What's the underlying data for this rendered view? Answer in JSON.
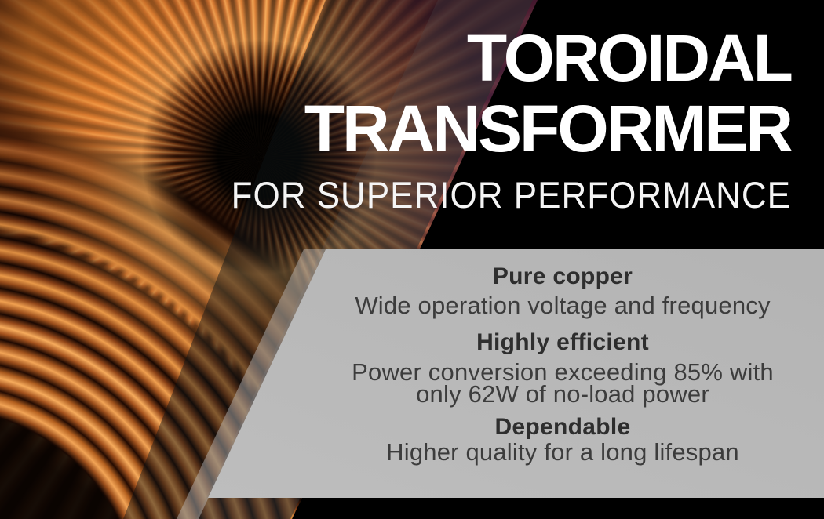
{
  "title": {
    "line1": "TOROIDAL",
    "line2": "TRANSFORMER",
    "subtitle": "FOR SUPERIOR PERFORMANCE"
  },
  "features": [
    {
      "heading": "Pure copper",
      "lines": [
        "Wide operation voltage and frequency"
      ]
    },
    {
      "heading": "Highly efficient",
      "lines": [
        "Power conversion exceeding 85% with",
        "only 62W of no-load power"
      ]
    },
    {
      "heading": "Dependable",
      "lines": [
        "Higher quality for a long lifespan"
      ]
    }
  ],
  "photo": {
    "alt": "Close-up of a copper toroidal transformer coil with radiating copper wire windings"
  },
  "colors": {
    "background_black": "#000000",
    "panel_gray": "#b5b5b5",
    "copper_accent": "#c9732c",
    "title_white": "#ffffff",
    "text_dark": "#333333"
  }
}
